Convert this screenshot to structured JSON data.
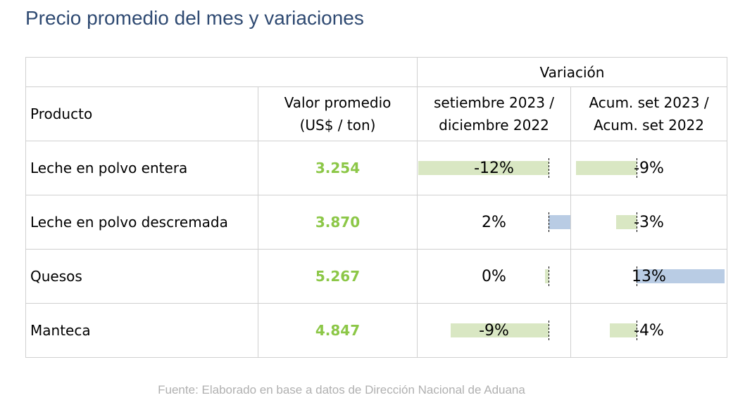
{
  "title": "Precio promedio del mes y variaciones",
  "table": {
    "variacion_header": "Variación",
    "col_producto": "Producto",
    "col_valor_line1": "Valor promedio",
    "col_valor_line2": "(US$ / ton)",
    "col_mes_line1": "setiembre 2023 /",
    "col_mes_line2": "diciembre 2022",
    "col_acum_line1": "Acum. set 2023 /",
    "col_acum_line2": "Acum. set 2022",
    "rows": [
      {
        "producto": "Leche en polvo entera",
        "valor": "3.254",
        "var_mes": "-12%",
        "var_mes_value": -12,
        "var_acum": "-9%",
        "var_acum_value": -9
      },
      {
        "producto": "Leche en polvo descremada",
        "valor": "3.870",
        "var_mes": "2%",
        "var_mes_value": 2,
        "var_acum": "-3%",
        "var_acum_value": -3
      },
      {
        "producto": "Quesos",
        "valor": "5.267",
        "var_mes": "0%",
        "var_mes_value": 0,
        "var_acum": "13%",
        "var_acum_value": 13
      },
      {
        "producto": "Manteca",
        "valor": "4.847",
        "var_mes": "-9%",
        "var_mes_value": -9,
        "var_acum": "-4%",
        "var_acum_value": -4
      }
    ]
  },
  "colors": {
    "negative_bar": "#d9e7c3",
    "positive_bar": "#b9cce4",
    "value_text": "#8cc747",
    "title_text": "#2f4a72"
  },
  "source": "Fuente: Elaborado en base a datos de Dirección Nacional de Aduana"
}
